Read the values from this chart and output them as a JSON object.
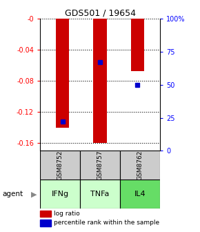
{
  "title": "GDS501 / 19654",
  "categories": [
    "GSM8752",
    "GSM8757",
    "GSM8762"
  ],
  "agents": [
    "IFNg",
    "TNFa",
    "IL4"
  ],
  "log_ratio": [
    -0.14,
    -0.16,
    -0.068
  ],
  "percentile_rank": [
    0.22,
    0.67,
    0.5
  ],
  "ylim_left": [
    -0.17,
    0.0
  ],
  "ylim_right": [
    0.0,
    1.0
  ],
  "yticks_left": [
    0.0,
    -0.04,
    -0.08,
    -0.12,
    -0.16
  ],
  "yticks_right": [
    0.0,
    0.25,
    0.5,
    0.75,
    1.0
  ],
  "ytick_labels_left": [
    "-0",
    "-0.04",
    "-0.08",
    "-0.12",
    "-0.16"
  ],
  "ytick_labels_right": [
    "0",
    "25",
    "50",
    "75",
    "100%"
  ],
  "bar_color": "#cc0000",
  "marker_color": "#0000cc",
  "agent_colors": [
    "#ccffcc",
    "#ccffcc",
    "#66dd66"
  ],
  "gsm_bg": "#cccccc",
  "legend_log": "log ratio",
  "legend_pct": "percentile rank within the sample",
  "bar_width": 0.35,
  "title_fontsize": 9
}
